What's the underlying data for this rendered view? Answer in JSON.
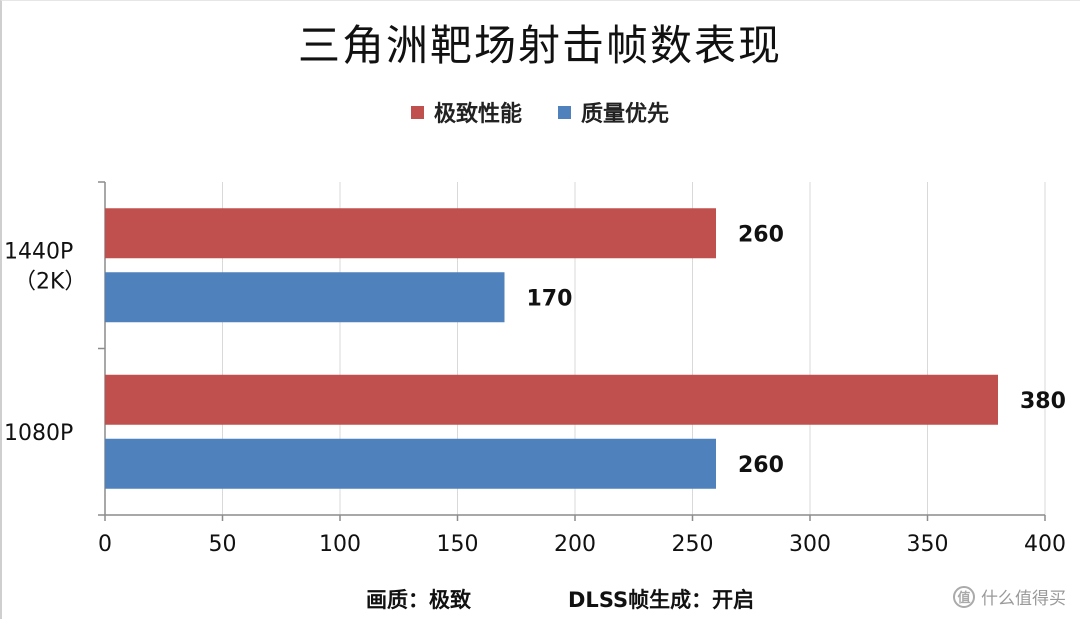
{
  "chart_data": {
    "type": "bar",
    "orientation": "horizontal",
    "title": "三角洲靶场射击帧数表现",
    "categories": [
      "1440P\n（2K）",
      "1080P"
    ],
    "series": [
      {
        "name": "极致性能",
        "color": "#c0504d",
        "values": [
          260,
          380
        ]
      },
      {
        "name": "质量优先",
        "color": "#4f81bd",
        "values": [
          170,
          260
        ]
      }
    ],
    "xlim": [
      0,
      400
    ],
    "xticks": [
      0,
      50,
      100,
      150,
      200,
      250,
      300,
      350,
      400
    ],
    "grid": true,
    "legend_position": "top",
    "data_labels": true
  },
  "footnote": {
    "quality": "画质：极致",
    "dlss": "DLSS帧生成：开启"
  },
  "watermark": {
    "logo_glyph": "值",
    "text": "什么值得买"
  }
}
